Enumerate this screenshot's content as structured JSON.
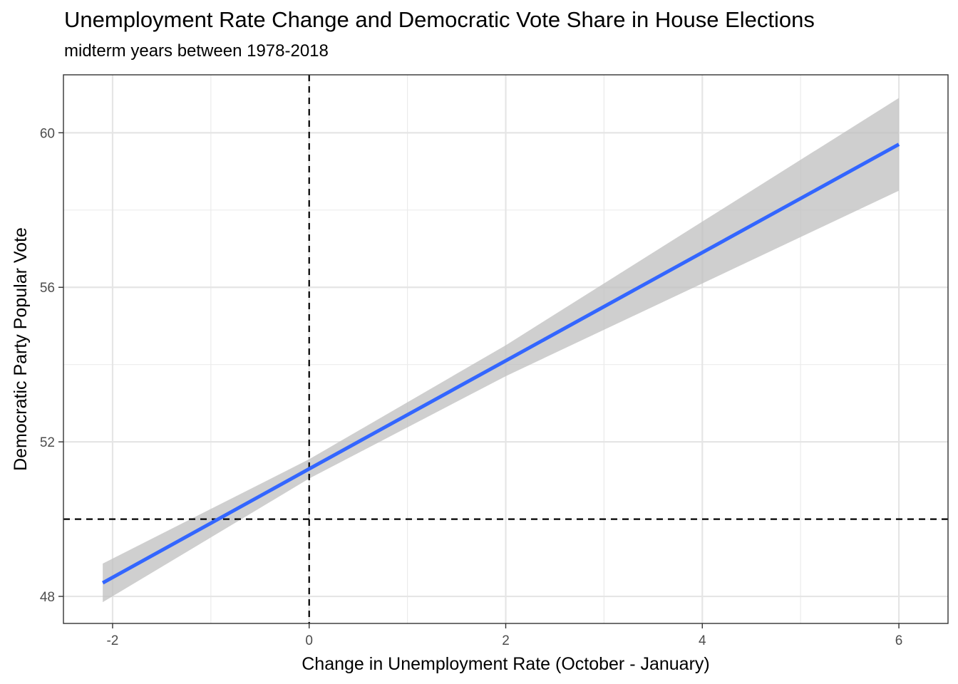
{
  "chart_data": {
    "type": "line",
    "title": "Unemployment Rate Change and Democratic Vote Share in House Elections",
    "subtitle": "midterm years between 1978-2018",
    "xlabel": "Change in Unemployment Rate (October - January)",
    "ylabel": "Democratic Party Popular Vote",
    "xlim": [
      -2.5,
      6.5
    ],
    "ylim": [
      47.3,
      61.5
    ],
    "x_ticks": [
      -2,
      0,
      2,
      4,
      6
    ],
    "x_tick_labels": [
      "-2",
      "0",
      "2",
      "4",
      "6"
    ],
    "y_ticks": [
      48,
      52,
      56,
      60
    ],
    "y_tick_labels": [
      "48",
      "52",
      "56",
      "60"
    ],
    "grid": true,
    "legend": "none",
    "series": [
      {
        "type": "linear-fit",
        "x": [
          -2.1,
          0,
          2,
          4,
          6
        ],
        "y": [
          48.35,
          51.3,
          54.1,
          56.9,
          59.7
        ],
        "ci_upper": [
          48.85,
          51.55,
          54.5,
          57.7,
          60.9
        ],
        "ci_lower": [
          47.85,
          51.05,
          53.7,
          56.1,
          58.5
        ],
        "color": "#3366ff",
        "ribbon_color": "#bfbfbf"
      }
    ],
    "reference_lines": [
      {
        "orientation": "vertical",
        "x": 0,
        "style": "dashed",
        "color": "#000000"
      },
      {
        "orientation": "horizontal",
        "y": 50,
        "style": "dashed",
        "color": "#000000"
      }
    ]
  }
}
